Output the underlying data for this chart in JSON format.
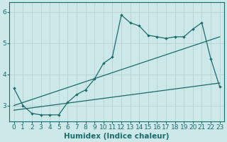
{
  "bg_color": "#cce8e8",
  "grid_color": "#b8d4d4",
  "line_color": "#1a6b6b",
  "xlabel": "Humidex (Indice chaleur)",
  "xlim": [
    -0.5,
    23.5
  ],
  "ylim": [
    2.5,
    6.3
  ],
  "yticks": [
    3,
    4,
    5,
    6
  ],
  "xticks": [
    0,
    1,
    2,
    3,
    4,
    5,
    6,
    7,
    8,
    9,
    10,
    11,
    12,
    13,
    14,
    15,
    16,
    17,
    18,
    19,
    20,
    21,
    22,
    23
  ],
  "line1_x": [
    0,
    1,
    2,
    3,
    4,
    5,
    6,
    7,
    8,
    9,
    10,
    11,
    12,
    13,
    14,
    15,
    16,
    17,
    18,
    19,
    20,
    21,
    22,
    23
  ],
  "line1_y": [
    3.55,
    3.0,
    2.75,
    2.7,
    2.7,
    2.7,
    3.1,
    3.35,
    3.5,
    3.85,
    4.35,
    4.55,
    5.9,
    5.65,
    5.55,
    5.25,
    5.2,
    5.15,
    5.2,
    5.2,
    5.45,
    5.65,
    4.5,
    3.6
  ],
  "line2_x": [
    0,
    23
  ],
  "line2_y": [
    2.85,
    3.72
  ],
  "line3_x": [
    0,
    23
  ],
  "line3_y": [
    3.0,
    5.2
  ],
  "tick_fontsize": 6.5,
  "xlabel_fontsize": 7.5
}
